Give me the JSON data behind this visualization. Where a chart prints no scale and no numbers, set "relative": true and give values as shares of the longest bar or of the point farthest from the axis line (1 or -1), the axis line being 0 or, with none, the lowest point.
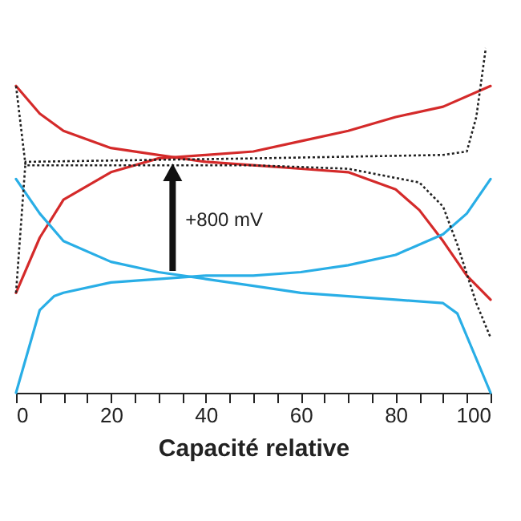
{
  "chart_data": {
    "type": "line",
    "relative": true,
    "xlabel": "Capacité relative",
    "xlim": [
      0,
      100
    ],
    "xticks": [
      0,
      {
        "value": 5,
        "label": null
      },
      {
        "value": 10,
        "label": null
      },
      {
        "value": 15,
        "label": null
      },
      20,
      {
        "value": 25,
        "label": null
      },
      {
        "value": 30,
        "label": null
      },
      {
        "value": 35,
        "label": null
      },
      40,
      {
        "value": 45,
        "label": null
      },
      {
        "value": 50,
        "label": null
      },
      {
        "value": 55,
        "label": null
      },
      60,
      {
        "value": 65,
        "label": null
      },
      {
        "value": 70,
        "label": null
      },
      {
        "value": 75,
        "label": null
      },
      80,
      {
        "value": 85,
        "label": null
      },
      {
        "value": 90,
        "label": null
      },
      {
        "value": 95,
        "label": null
      },
      100
    ],
    "grid": false,
    "legend": false,
    "marker": "none",
    "series": [
      {
        "color": "#d42a2a",
        "line_style": "solid",
        "x": [
          0,
          5,
          10,
          20,
          30,
          40,
          50,
          60,
          70,
          80,
          85,
          90,
          95,
          100
        ],
        "values": [
          0.89,
          0.81,
          0.76,
          0.71,
          0.69,
          0.67,
          0.66,
          0.65,
          0.64,
          0.59,
          0.53,
          0.44,
          0.34,
          0.27
        ]
      },
      {
        "color": "#d42a2a",
        "line_style": "solid",
        "x": [
          0,
          5,
          10,
          20,
          30,
          40,
          50,
          60,
          70,
          80,
          90,
          100
        ],
        "values": [
          0.29,
          0.45,
          0.56,
          0.64,
          0.68,
          0.69,
          0.7,
          0.73,
          0.76,
          0.8,
          0.83,
          0.89
        ]
      },
      {
        "color": "#29aee6",
        "line_style": "solid",
        "x": [
          0,
          5,
          10,
          20,
          30,
          40,
          50,
          60,
          70,
          80,
          90,
          93,
          100
        ],
        "values": [
          0.62,
          0.52,
          0.44,
          0.38,
          0.35,
          0.33,
          0.31,
          0.29,
          0.28,
          0.27,
          0.26,
          0.23,
          0
        ]
      },
      {
        "color": "#29aee6",
        "line_style": "solid",
        "x": [
          0,
          5,
          8,
          10,
          20,
          30,
          40,
          50,
          60,
          70,
          80,
          90,
          95,
          100
        ],
        "values": [
          0,
          0.24,
          0.28,
          0.29,
          0.32,
          0.33,
          0.34,
          0.34,
          0.35,
          0.37,
          0.4,
          0.46,
          0.52,
          0.62
        ]
      },
      {
        "color": "#222222",
        "line_style": "dotted",
        "x": [
          0,
          2,
          50,
          90,
          95,
          97,
          99
        ],
        "values": [
          0.29,
          0.67,
          0.68,
          0.69,
          0.7,
          0.8,
          1
        ]
      },
      {
        "color": "#222222",
        "line_style": "dotted",
        "x": [
          0,
          2,
          50,
          70,
          85,
          90,
          93,
          97,
          100
        ],
        "values": [
          0.89,
          0.66,
          0.66,
          0.65,
          0.61,
          0.54,
          0.43,
          0.26,
          0.16
        ]
      }
    ],
    "annotations": [
      {
        "text": "+800 mV",
        "x": 33,
        "y": 0.67
      }
    ]
  }
}
